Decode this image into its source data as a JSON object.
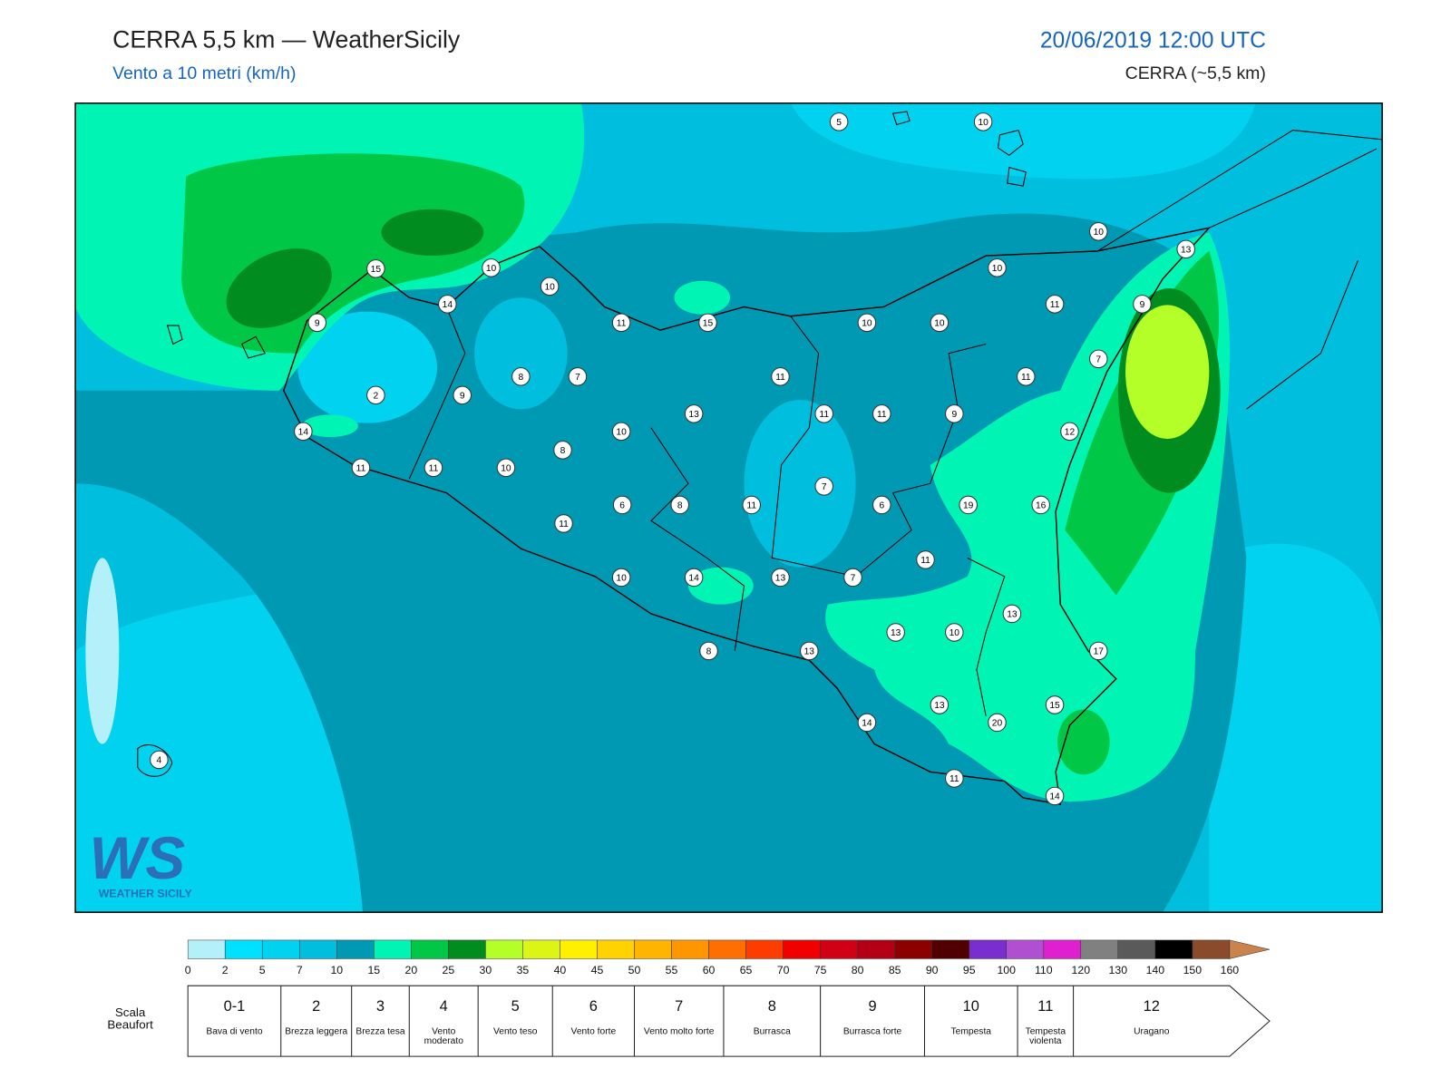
{
  "header": {
    "title": "CERRA 5,5 km — WeatherSicily",
    "subtitle": "Vento a 10 metri (km/h)",
    "datetime": "20/06/2019 12:00 UTC",
    "model": "CERRA (~5,5 km)"
  },
  "stations": [
    5,
    10,
    10,
    13,
    15,
    10,
    10,
    10,
    14,
    11,
    9,
    9,
    11,
    15,
    10,
    10,
    7,
    8,
    7,
    11,
    11,
    2,
    9,
    13,
    11,
    11,
    9,
    14,
    10,
    12,
    8,
    11,
    11,
    10,
    7,
    6,
    8,
    11,
    6,
    19,
    16,
    11,
    11,
    10,
    14,
    13,
    7,
    13,
    13,
    10,
    8,
    13,
    17,
    13,
    15,
    20,
    14,
    4,
    11,
    14
  ],
  "logo": {
    "mark": "WS",
    "text": "WEATHER SICILY"
  },
  "colorbar": {
    "ticks": [
      0,
      2,
      5,
      7,
      10,
      15,
      20,
      25,
      30,
      35,
      40,
      45,
      50,
      55,
      60,
      65,
      70,
      75,
      80,
      85,
      90,
      95,
      100,
      110,
      120,
      130,
      140,
      150,
      160
    ],
    "colors": [
      "#b4f0fa",
      "#00e1ff",
      "#00d2f0",
      "#00bedd",
      "#0099b3",
      "#00f5b4",
      "#00c846",
      "#008c1e",
      "#b4ff28",
      "#dcf514",
      "#fff000",
      "#ffd200",
      "#ffb400",
      "#ff9600",
      "#ff6e00",
      "#ff3c00",
      "#f00000",
      "#d20014",
      "#b40014",
      "#8c0000",
      "#500000",
      "#7a2ed0",
      "#b050d0",
      "#e020d0",
      "#808080",
      "#5a5a5a",
      "#000000",
      "#8b4a2b",
      "#c8844c"
    ]
  },
  "beaufort": {
    "label": "Scala Beaufort",
    "levels": [
      {
        "force": "0-1",
        "name": "Bava di vento"
      },
      {
        "force": 2,
        "name": "Brezza leggera"
      },
      {
        "force": 3,
        "name": "Brezza tesa"
      },
      {
        "force": 4,
        "name": "Vento moderato"
      },
      {
        "force": 5,
        "name": "Vento teso"
      },
      {
        "force": 6,
        "name": "Vento forte"
      },
      {
        "force": 7,
        "name": "Vento molto forte"
      },
      {
        "force": 8,
        "name": "Burrasca"
      },
      {
        "force": 9,
        "name": "Burrasca forte"
      },
      {
        "force": 10,
        "name": "Tempesta"
      },
      {
        "force": 11,
        "name": "Tempesta violenta"
      },
      {
        "force": 12,
        "name": "Uragano"
      }
    ]
  }
}
